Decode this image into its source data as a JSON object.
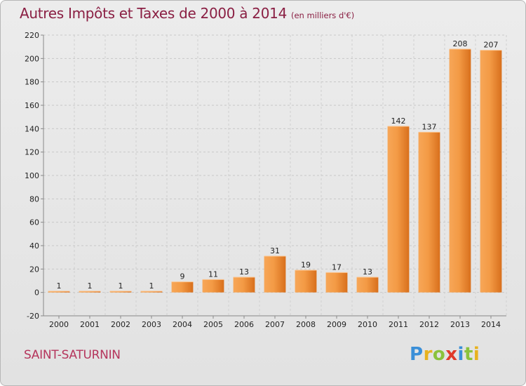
{
  "header": {
    "title": "Autres Impôts et Taxes de 2000 à 2014",
    "unit": "(en milliers d'€)"
  },
  "footer": {
    "commune": "SAINT-SATURNIN",
    "logo_letters": [
      "P",
      "r",
      "o",
      "x",
      "i",
      "t",
      "i"
    ],
    "logo_colors": [
      "#3a8fd8",
      "#e8b21e",
      "#8ac23c",
      "#e03a2a",
      "#3a8fd8",
      "#8ac23c",
      "#e8b21e"
    ]
  },
  "colors": {
    "bar_light": "#f7a758",
    "bar_dark": "#d86f1c",
    "title": "#8a1f43",
    "commune": "#b5355c"
  },
  "chart_data": {
    "type": "bar",
    "categories": [
      "2000",
      "2001",
      "2002",
      "2003",
      "2004",
      "2005",
      "2006",
      "2007",
      "2008",
      "2009",
      "2010",
      "2011",
      "2012",
      "2013",
      "2014"
    ],
    "values": [
      1,
      1,
      1,
      1,
      9,
      11,
      13,
      31,
      19,
      17,
      13,
      142,
      137,
      208,
      207
    ],
    "ylim": [
      -20,
      220
    ],
    "yticks": [
      -20,
      0,
      20,
      40,
      60,
      80,
      100,
      120,
      140,
      160,
      180,
      200,
      220
    ],
    "grid": "horizontal dashed",
    "legend": "none"
  }
}
